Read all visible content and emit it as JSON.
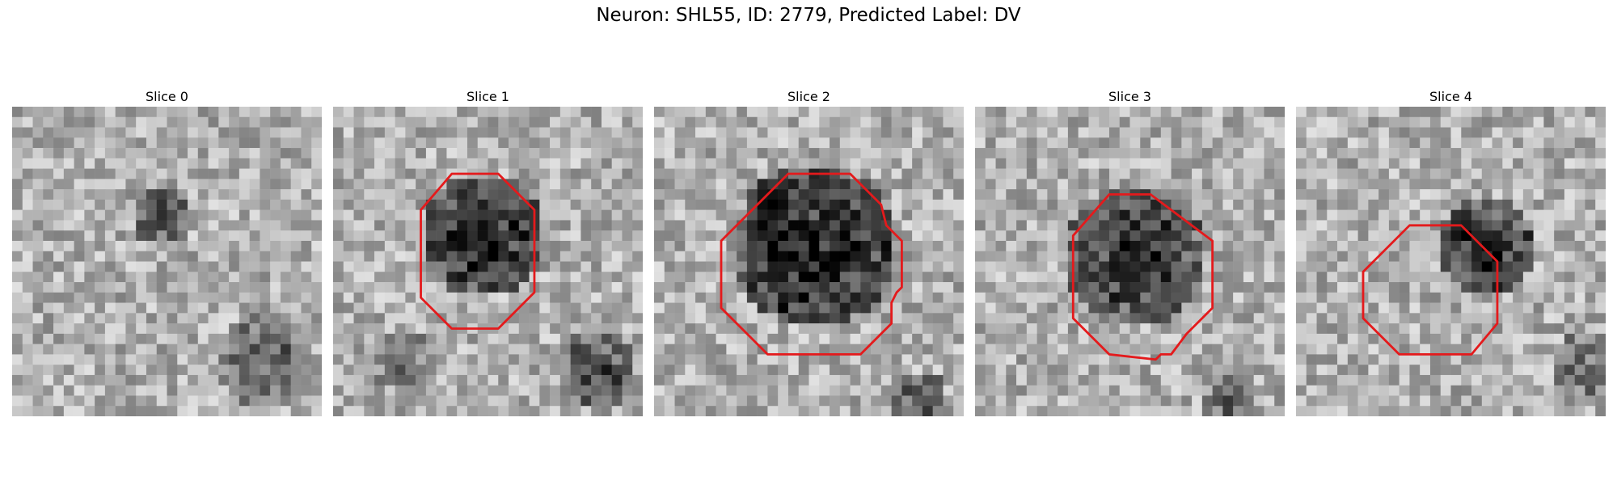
{
  "figure": {
    "title": "Neuron: SHL55, ID: 2779, Predicted Label: DV"
  },
  "panels": [
    {
      "title": "Slice 0",
      "has_contour": false
    },
    {
      "title": "Slice 1",
      "has_contour": true
    },
    {
      "title": "Slice 2",
      "has_contour": true
    },
    {
      "title": "Slice 3",
      "has_contour": true
    },
    {
      "title": "Slice 4",
      "has_contour": true
    }
  ],
  "colors": {
    "contour": "#e41a1c",
    "colormap": "grayscale (dark = high intensity)"
  }
}
